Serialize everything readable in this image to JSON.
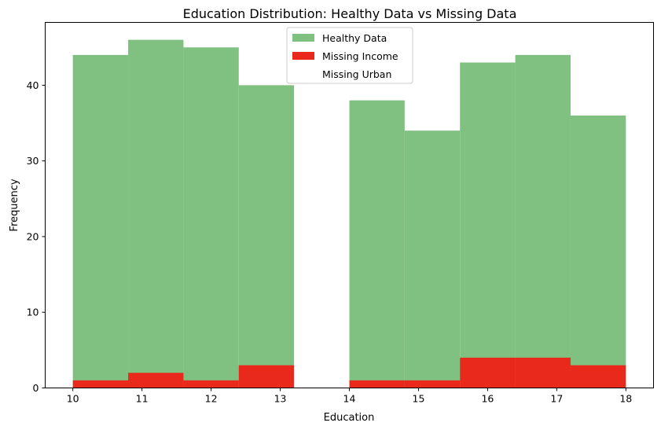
{
  "chart_data": {
    "type": "bar",
    "title": "Education Distribution: Healthy Data vs Missing Data",
    "xlabel": "Education",
    "ylabel": "Frequency",
    "xlim": [
      9.6,
      18.4
    ],
    "ylim": [
      0,
      48.3
    ],
    "xticks": [
      10,
      11,
      12,
      13,
      14,
      15,
      16,
      17,
      18
    ],
    "yticks": [
      0,
      10,
      20,
      30,
      40
    ],
    "bin_edges": [
      10.0,
      10.8,
      11.6,
      12.4,
      13.2,
      14.0,
      14.8,
      15.6,
      16.4,
      17.2,
      18.0
    ],
    "series": [
      {
        "name": "Healthy Data",
        "color": "#80c080",
        "values": [
          44,
          46,
          45,
          40,
          0,
          38,
          34,
          43,
          44,
          36
        ]
      },
      {
        "name": "Missing Income",
        "color": "#e8291c",
        "values": [
          1,
          2,
          1,
          3,
          0,
          1,
          1,
          4,
          4,
          3
        ]
      },
      {
        "name": "Missing Urban",
        "color": "#ffffff",
        "values": [
          0,
          0,
          0,
          0,
          0,
          0,
          0,
          0,
          0,
          0
        ]
      }
    ],
    "legend": {
      "position": "top-center"
    },
    "grid": false
  }
}
